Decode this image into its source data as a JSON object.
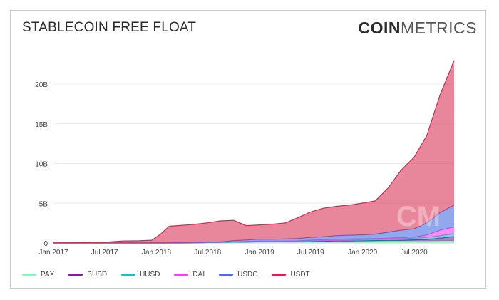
{
  "title": "STABLECOIN FREE FLOAT",
  "brand": {
    "bold": "COIN",
    "light": "METRICS"
  },
  "watermark": "CM",
  "chart_data": {
    "type": "area",
    "stacked": true,
    "x_dates": [
      "2017-01-01",
      "2017-03-01",
      "2017-05-01",
      "2017-07-01",
      "2017-09-01",
      "2017-11-01",
      "2017-12-15",
      "2018-01-15",
      "2018-02-15",
      "2018-04-01",
      "2018-05-15",
      "2018-07-01",
      "2018-08-15",
      "2018-10-01",
      "2018-11-15",
      "2019-01-01",
      "2019-02-15",
      "2019-04-01",
      "2019-05-15",
      "2019-07-01",
      "2019-08-15",
      "2019-10-01",
      "2019-11-15",
      "2020-01-01",
      "2020-02-15",
      "2020-04-01",
      "2020-05-15",
      "2020-07-01",
      "2020-08-15",
      "2020-10-01",
      "2020-11-20"
    ],
    "xticks": [
      "Jan 2017",
      "Jul 2017",
      "Jan 2018",
      "Jul 2018",
      "Jan 2019",
      "Jul 2019",
      "Jan 2020",
      "Jul 2020"
    ],
    "xtick_dates": [
      "2017-01-01",
      "2017-07-01",
      "2018-01-01",
      "2018-07-01",
      "2019-01-01",
      "2019-07-01",
      "2020-01-01",
      "2020-07-01"
    ],
    "xlim": [
      "2017-01-01",
      "2020-11-20"
    ],
    "yticks": [
      "0",
      "5B",
      "10B",
      "15B",
      "20B"
    ],
    "ytick_values": [
      0,
      5,
      10,
      15,
      20
    ],
    "ylim": [
      0,
      23.5
    ],
    "y_unit": "billions",
    "grid": "horizontal",
    "legend_position": "bottom-left",
    "series": [
      {
        "name": "PAX",
        "color": "#90f0b8",
        "values": [
          0,
          0,
          0,
          0,
          0,
          0,
          0,
          0,
          0,
          0,
          0.01,
          0.05,
          0.08,
          0.1,
          0.12,
          0.15,
          0.14,
          0.15,
          0.17,
          0.2,
          0.2,
          0.22,
          0.22,
          0.23,
          0.23,
          0.24,
          0.24,
          0.25,
          0.25,
          0.26,
          0.27
        ]
      },
      {
        "name": "BUSD",
        "color": "#7a1fa2",
        "values": [
          0,
          0,
          0,
          0,
          0,
          0,
          0,
          0,
          0,
          0,
          0,
          0,
          0,
          0,
          0,
          0,
          0,
          0,
          0,
          0,
          0.02,
          0.03,
          0.04,
          0.05,
          0.08,
          0.1,
          0.12,
          0.15,
          0.2,
          0.35,
          0.55
        ]
      },
      {
        "name": "HUSD",
        "color": "#2ab7c7",
        "values": [
          0,
          0,
          0,
          0,
          0,
          0,
          0,
          0,
          0,
          0,
          0,
          0,
          0,
          0,
          0,
          0,
          0,
          0,
          0,
          0.05,
          0.08,
          0.1,
          0.12,
          0.14,
          0.15,
          0.16,
          0.18,
          0.2,
          0.25,
          0.3,
          0.35
        ]
      },
      {
        "name": "DAI",
        "color": "#ee44ee",
        "values": [
          0,
          0,
          0,
          0,
          0,
          0,
          0,
          0,
          0.01,
          0.02,
          0.03,
          0.04,
          0.05,
          0.05,
          0.06,
          0.08,
          0.08,
          0.08,
          0.09,
          0.1,
          0.1,
          0.12,
          0.12,
          0.1,
          0.1,
          0.1,
          0.12,
          0.13,
          0.3,
          0.7,
          0.85
        ]
      },
      {
        "name": "USDC",
        "color": "#4a6ee0",
        "values": [
          0,
          0,
          0,
          0,
          0,
          0,
          0,
          0,
          0,
          0,
          0,
          0,
          0,
          0.15,
          0.2,
          0.25,
          0.25,
          0.28,
          0.3,
          0.36,
          0.38,
          0.45,
          0.47,
          0.5,
          0.55,
          0.75,
          0.95,
          1.05,
          1.5,
          2.2,
          2.75
        ]
      },
      {
        "name": "USDT",
        "color": "#d6244a",
        "values": [
          0.02,
          0.03,
          0.06,
          0.09,
          0.25,
          0.28,
          0.35,
          1.1,
          2.1,
          2.2,
          2.3,
          2.45,
          2.65,
          2.55,
          1.8,
          1.8,
          1.9,
          2.0,
          2.6,
          3.2,
          3.6,
          3.7,
          3.8,
          4.0,
          4.2,
          5.6,
          7.5,
          9.0,
          11.0,
          14.8,
          18.2
        ]
      }
    ]
  }
}
